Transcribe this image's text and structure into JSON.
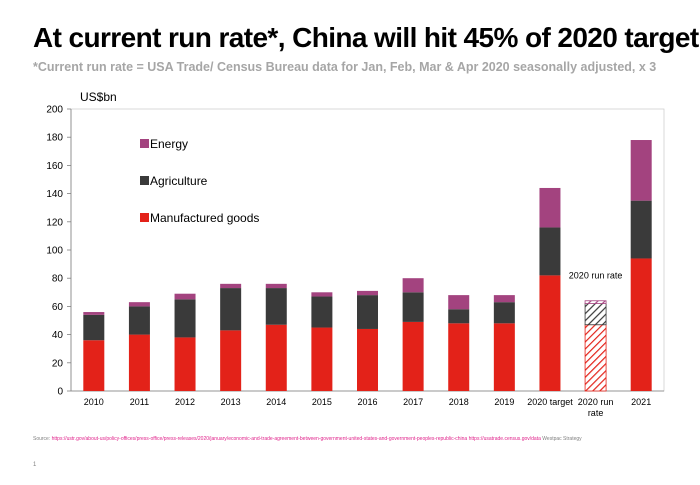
{
  "title": "At current run rate*, China will hit 45% of 2020 target",
  "subtitle": "*Current run rate = USA Trade/ Census Bureau data for Jan, Feb, Mar & Apr 2020 seasonally adjusted, x 3",
  "footer": {
    "source_label": "Source:",
    "source_link_1": "https://ustr.gov/about-us/policy-offices/press-office/press-releases/2020/january/economic-and-trade-agreement-between-government-united-states-and-government-peoples-republic-china",
    "source_link_2": "https://usatrade.census.gov/data",
    "author": "Westpac Strategy"
  },
  "page_number": "1",
  "chart_data": {
    "type": "bar",
    "stacked": true,
    "ylabel": "US$bn",
    "xlabel": "",
    "ylim": [
      0,
      200
    ],
    "yticks": [
      0,
      20,
      40,
      60,
      80,
      100,
      120,
      140,
      160,
      180,
      200
    ],
    "grid": false,
    "legend_position": "top-left",
    "categories": [
      "2010",
      "2011",
      "2012",
      "2013",
      "2014",
      "2015",
      "2016",
      "2017",
      "2018",
      "2019",
      "2020 target",
      "2020 run rate",
      "2021"
    ],
    "series": [
      {
        "name": "Manufactured goods",
        "color": "#e32219",
        "values": [
          36,
          40,
          38,
          43,
          47,
          45,
          44,
          49,
          48,
          48,
          82,
          47,
          94
        ]
      },
      {
        "name": "Agriculture",
        "color": "#3a3a3a",
        "values": [
          18,
          20,
          27,
          30,
          26,
          22,
          24,
          21,
          10,
          15,
          34,
          15,
          41
        ]
      },
      {
        "name": "Energy",
        "color": "#a3437f",
        "values": [
          2,
          3,
          4,
          3,
          3,
          3,
          3,
          10,
          10,
          5,
          28,
          2,
          43
        ]
      }
    ],
    "hatched_category": "2020 run rate",
    "annotations": [
      {
        "text": "2020 run rate",
        "category": "2020 run rate",
        "y": 82
      }
    ]
  }
}
